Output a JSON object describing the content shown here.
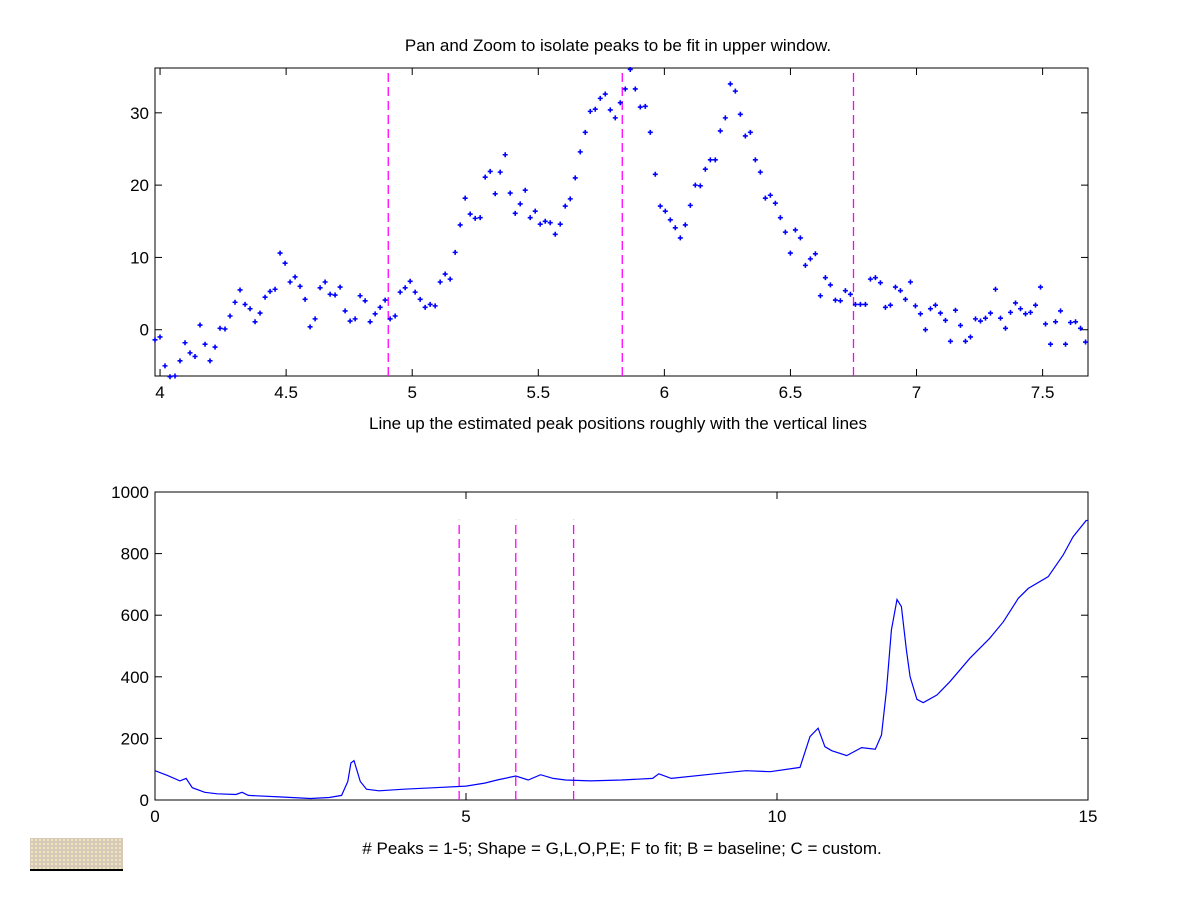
{
  "chart_data": [
    {
      "type": "scatter",
      "title": "Pan and Zoom to isolate peaks to be fit in upper window.",
      "xlabel": "Line up the estimated peak positions roughly with the vertical lines",
      "ylabel": "",
      "xlim": [
        3.98,
        7.68
      ],
      "ylim": [
        -6.4,
        36.2
      ],
      "xticks": [
        "4",
        "4.5",
        "5",
        "5.5",
        "6",
        "6.5",
        "7",
        "7.5"
      ],
      "xtick_values": [
        4,
        4.5,
        5,
        5.5,
        6,
        6.5,
        7,
        7.5
      ],
      "yticks": [
        "0",
        "10",
        "20",
        "30"
      ],
      "ytick_values": [
        0,
        10,
        20,
        30
      ],
      "grid": false,
      "marker": "+",
      "marker_color": "#0000ff",
      "x_start": 3.98,
      "x_step": 0.01984,
      "y": [
        -1.4,
        -1.0,
        -5.0,
        -6.5,
        -6.4,
        -4.3,
        -1.8,
        -3.2,
        -3.7,
        0.65,
        -2.0,
        -4.3,
        -2.4,
        0.2,
        0.1,
        1.9,
        3.8,
        5.5,
        3.5,
        2.9,
        1.1,
        2.3,
        4.5,
        5.3,
        5.6,
        10.6,
        9.2,
        6.6,
        7.3,
        6.0,
        4.2,
        0.4,
        1.5,
        5.8,
        6.6,
        4.9,
        4.8,
        5.9,
        2.6,
        1.2,
        1.5,
        4.7,
        4.0,
        1.1,
        2.2,
        3.1,
        4.1,
        1.5,
        1.9,
        5.2,
        5.8,
        6.7,
        5.2,
        4.2,
        3.1,
        3.5,
        3.3,
        6.6,
        7.7,
        7.0,
        10.7,
        14.5,
        18.2,
        16.0,
        15.4,
        15.5,
        21.1,
        21.9,
        18.8,
        21.8,
        24.2,
        18.9,
        16.1,
        17.4,
        19.3,
        15.5,
        16.4,
        14.6,
        15.0,
        14.8,
        13.2,
        14.6,
        17.1,
        18.1,
        21.0,
        24.6,
        27.3,
        30.2,
        30.5,
        32.0,
        32.6,
        30.4,
        29.3,
        31.4,
        33.3,
        36.0,
        33.3,
        30.8,
        30.9,
        27.3,
        21.5,
        17.1,
        16.4,
        15.2,
        14.1,
        12.7,
        14.5,
        17.2,
        20.0,
        19.9,
        22.2,
        23.5,
        23.5,
        27.5,
        29.3,
        34.0,
        33.0,
        29.8,
        26.8,
        27.3,
        23.5,
        21.8,
        18.2,
        18.6,
        17.5,
        15.5,
        13.5,
        10.6,
        13.8,
        12.7,
        8.9,
        9.8,
        10.5,
        4.7,
        7.2,
        6.2,
        4.1,
        4.0,
        5.4,
        4.9,
        3.5,
        3.5,
        3.5,
        7.0,
        7.2,
        6.5,
        3.1,
        3.4,
        5.9,
        5.4,
        4.2,
        6.6,
        3.3,
        2.2,
        0.0,
        2.9,
        3.4,
        2.3,
        1.3,
        -1.6,
        2.7,
        0.6,
        -1.6,
        -1.0,
        1.5,
        1.2,
        1.6,
        2.3,
        5.6,
        1.6,
        0.2,
        2.4,
        3.7,
        2.9,
        2.2,
        2.4,
        3.4,
        5.9,
        0.8,
        -2.0,
        1.1,
        2.6,
        -2.0,
        1.0,
        1.1,
        0.2,
        -1.7
      ],
      "vertical_lines": [
        {
          "x": 4.905,
          "color": "#ff00ff"
        },
        {
          "x": 5.833,
          "color": "#ff00ff"
        },
        {
          "x": 6.75,
          "color": "#ff00ff"
        }
      ]
    },
    {
      "type": "line",
      "title": "",
      "xlabel": "# Peaks = 1-5; Shape = G,L,O,P,E;  F to fit; B = baseline; C = custom.",
      "ylabel": "",
      "xlim": [
        0,
        15
      ],
      "ylim": [
        0,
        1000
      ],
      "xticks": [
        "0",
        "5",
        "10",
        "15"
      ],
      "xtick_values": [
        0,
        5,
        10,
        15
      ],
      "yticks": [
        "0",
        "200",
        "400",
        "600",
        "800",
        "1000"
      ],
      "ytick_values": [
        0,
        200,
        400,
        600,
        800,
        1000
      ],
      "grid": false,
      "line_color": "#0000ff",
      "x": [
        0,
        0.2,
        0.4,
        0.5,
        0.6,
        0.8,
        1.0,
        1.3,
        1.4,
        1.5,
        2.0,
        2.5,
        2.8,
        3.0,
        3.1,
        3.15,
        3.2,
        3.3,
        3.4,
        3.6,
        4.0,
        4.5,
        5.0,
        5.3,
        5.5,
        5.8,
        6.0,
        6.2,
        6.4,
        6.6,
        7.0,
        7.5,
        8.0,
        8.1,
        8.3,
        9.0,
        9.5,
        9.89,
        10.37,
        10.53,
        10.66,
        10.77,
        10.88,
        11.12,
        11.36,
        11.58,
        11.68,
        11.76,
        11.84,
        11.93,
        12.0,
        12.08,
        12.14,
        12.25,
        12.35,
        12.57,
        12.78,
        13.1,
        13.42,
        13.64,
        13.88,
        14.04,
        14.36,
        14.6,
        14.76,
        14.97,
        15.0
      ],
      "y": [
        95,
        80,
        62,
        70,
        40,
        25,
        20,
        18,
        25,
        15,
        10,
        5,
        8,
        15,
        60,
        120,
        128,
        60,
        35,
        30,
        35,
        40,
        45,
        55,
        65,
        78,
        65,
        82,
        70,
        65,
        62,
        65,
        70,
        85,
        70,
        85,
        95,
        92,
        106,
        206,
        233,
        173,
        160,
        144,
        170,
        165,
        211,
        357,
        552,
        651,
        628,
        487,
        400,
        327,
        316,
        341,
        384,
        460,
        525,
        579,
        655,
        687,
        725,
        795,
        855,
        907,
        908
      ],
      "vertical_lines": [
        {
          "x": 4.89,
          "color": "#ff00ff",
          "ymax": 910
        },
        {
          "x": 5.8,
          "color": "#ff00ff",
          "ymax": 910
        },
        {
          "x": 6.73,
          "color": "#ff00ff",
          "ymax": 910
        }
      ]
    }
  ]
}
